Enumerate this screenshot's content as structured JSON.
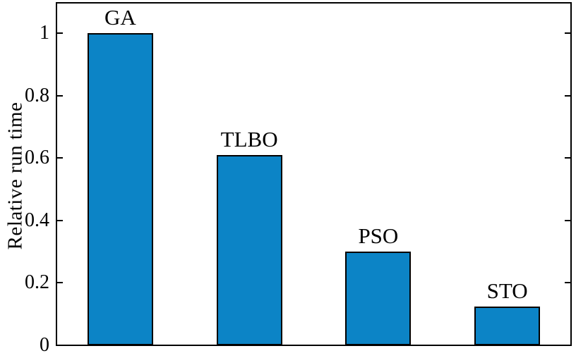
{
  "chart_data": {
    "type": "bar",
    "categories": [
      "GA",
      "TLBO",
      "PSO",
      "STO"
    ],
    "values": [
      1.0,
      0.61,
      0.3,
      0.125
    ],
    "title": "",
    "xlabel": "",
    "ylabel": "Relative run time",
    "ylim": [
      0,
      1.1
    ],
    "yticks": [
      0,
      0.2,
      0.4,
      0.6,
      0.8,
      1
    ],
    "ytick_labels": [
      "0",
      "0.2",
      "0.4",
      "0.6",
      "0.8",
      "1"
    ],
    "grid": false,
    "legend": null,
    "bar_labels_position": "above",
    "colors": {
      "bar_fill": "#0C84C6",
      "bar_edge": "#000000",
      "axis": "#000000",
      "text": "#000000",
      "background": "#ffffff"
    }
  }
}
